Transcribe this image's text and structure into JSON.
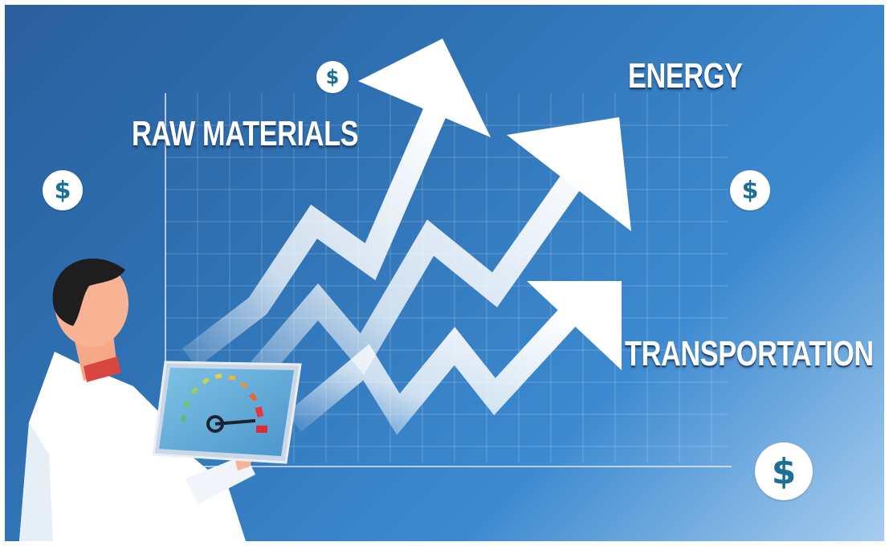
{
  "labels": {
    "raw_materials": "RAW MATERIALS",
    "energy": "ENERGY",
    "transportation": "TRANSPORTATION"
  },
  "coins": {
    "symbol": "$"
  },
  "colors": {
    "background_dark": "#2a5f9c",
    "background_light": "#a7cdef",
    "arrow": "#ffffff",
    "coin_text": "#1c6f96",
    "gauge_red": "#e8353a",
    "gauge_green": "#54c06a"
  }
}
